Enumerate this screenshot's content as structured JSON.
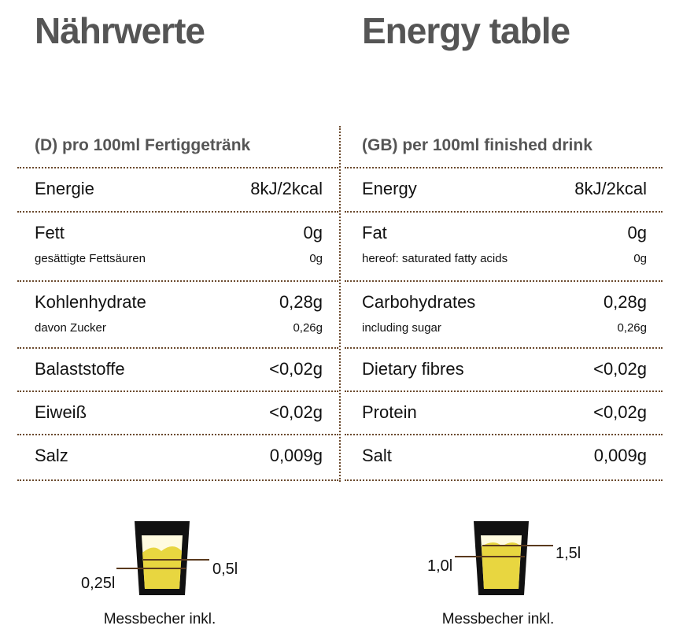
{
  "left": {
    "title": "Nährwerte",
    "header": "(D) pro 100ml Fertiggetränk",
    "rows": [
      {
        "name": "Energie",
        "value": "8kJ/2kcal"
      },
      {
        "name": "Fett",
        "value": "0g",
        "sub_name": "gesättigte Fettsäuren",
        "sub_value": "0g"
      },
      {
        "name": "Kohlenhydrate",
        "value": "0,28g",
        "sub_name": "davon Zucker",
        "sub_value": "0,26g"
      },
      {
        "name": "Balaststoffe",
        "value": "<0,02g"
      },
      {
        "name": "Eiweiß",
        "value": "<0,02g"
      },
      {
        "name": "Salz",
        "value": "0,009g"
      }
    ],
    "cup": {
      "low_label": "0,25l",
      "high_label": "0,5l",
      "caption": "Messbecher inkl."
    }
  },
  "right": {
    "title": "Energy table",
    "header": "(GB) per 100ml finished drink",
    "rows": [
      {
        "name": "Energy",
        "value": "8kJ/2kcal"
      },
      {
        "name": "Fat",
        "value": "0g",
        "sub_name": "hereof: saturated fatty acids",
        "sub_value": "0g"
      },
      {
        "name": "Carbohydrates",
        "value": "0,28g",
        "sub_name": "including sugar",
        "sub_value": "0,26g"
      },
      {
        "name": "Dietary fibres",
        "value": "<0,02g"
      },
      {
        "name": "Protein",
        "value": "<0,02g"
      },
      {
        "name": "Salt",
        "value": "0,009g"
      }
    ],
    "cup": {
      "low_label": "1,0l",
      "high_label": "1,5l",
      "caption": "Messbecher inkl."
    }
  }
}
